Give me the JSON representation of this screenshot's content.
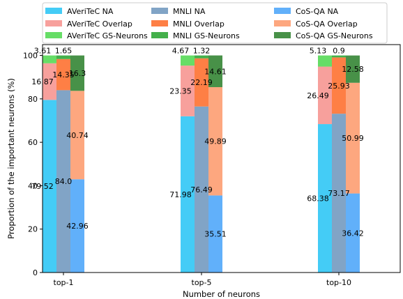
{
  "chart_data": {
    "type": "bar",
    "stacked": true,
    "grouped": true,
    "categories": [
      "top-1",
      "top-5",
      "top-10"
    ],
    "xlabel": "Number of neurons",
    "ylabel": "Proportion of the important neurons (%)",
    "ylim": [
      0,
      105
    ],
    "yticks": [
      0,
      20,
      40,
      60,
      80,
      100
    ],
    "grid": false,
    "legend_position": "top",
    "groups": [
      {
        "name": "AVeriTeC",
        "segments": [
          {
            "name": "AVeriTeC NA",
            "color": "#44ccf6",
            "values": [
              79.52,
              71.98,
              68.38
            ],
            "labels": [
              "79.52",
              "71.98",
              "68.38"
            ]
          },
          {
            "name": "AVeriTeC Overlap",
            "color": "#f7a09c",
            "values": [
              16.87,
              23.35,
              26.49
            ],
            "labels": [
              "16.87",
              "23.35",
              "26.49"
            ]
          },
          {
            "name": "AVeriTeC GS-Neurons",
            "color": "#66dd66",
            "values": [
              3.61,
              4.67,
              5.13
            ],
            "labels": [
              "3.61",
              "4.67",
              "5.13"
            ]
          }
        ]
      },
      {
        "name": "MNLI",
        "segments": [
          {
            "name": "MNLI NA",
            "color": "#81a4c6",
            "values": [
              84.0,
              76.49,
              73.17
            ],
            "labels": [
              "84.0",
              "76.49",
              "73.17"
            ]
          },
          {
            "name": "MNLI Overlap",
            "color": "#fe7f45",
            "values": [
              14.35,
              22.19,
              25.93
            ],
            "labels": [
              "14.35",
              "22.19",
              "25.93"
            ]
          },
          {
            "name": "MNLI GS-Neurons",
            "color": "#44b04b",
            "values": [
              1.65,
              1.32,
              0.9
            ],
            "labels": [
              "1.65",
              "1.32",
              "0.9"
            ]
          }
        ]
      },
      {
        "name": "CoS-QA",
        "segments": [
          {
            "name": "CoS-QA NA",
            "color": "#61b0fa",
            "values": [
              42.96,
              35.51,
              36.42
            ],
            "labels": [
              "42.96",
              "35.51",
              "36.42"
            ]
          },
          {
            "name": "CoS-QA Overlap",
            "color": "#fda77f",
            "values": [
              40.74,
              49.89,
              50.99
            ],
            "labels": [
              "40.74",
              "49.89",
              "50.99"
            ]
          },
          {
            "name": "CoS-QA GS-Neurons",
            "color": "#489148",
            "values": [
              16.3,
              14.61,
              12.58
            ],
            "labels": [
              "16.3",
              "14.61",
              "12.58"
            ]
          }
        ]
      }
    ],
    "legend": [
      "AVeriTeC NA",
      "MNLI NA",
      "CoS-QA NA",
      "AVeriTeC Overlap",
      "MNLI Overlap",
      "CoS-QA Overlap",
      "AVeriTeC GS-Neurons",
      "MNLI GS-Neurons",
      "CoS-QA GS-Neurons"
    ]
  }
}
